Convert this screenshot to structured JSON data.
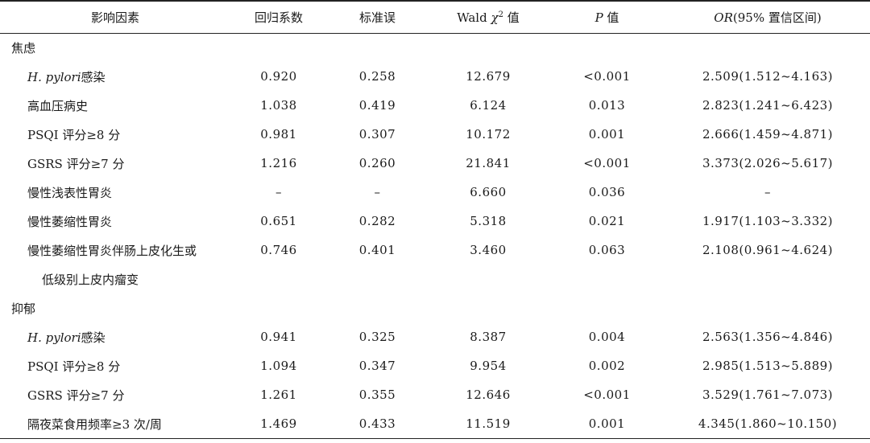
{
  "headers": {
    "factor": "影响因素",
    "coef": "回归系数",
    "se": "标准误",
    "wald_prefix": "Wald ",
    "wald_chi": "χ",
    "wald_sup": "2",
    "wald_suffix": " 值",
    "p_italic": "P",
    "p_suffix": " 值",
    "or_italic": "OR",
    "or_suffix": "(95% 置信区间)"
  },
  "groups": [
    {
      "label": "焦虑",
      "rows": [
        {
          "factor_italic": "H. pylori",
          "factor": "感染",
          "coef": "0.920",
          "se": "0.258",
          "wald": "12.679",
          "p": "<0.001",
          "or": "2.509(1.512~4.163)"
        },
        {
          "factor_italic": "",
          "factor": "高血压病史",
          "coef": "1.038",
          "se": "0.419",
          "wald": "6.124",
          "p": "0.013",
          "or": "2.823(1.241~6.423)"
        },
        {
          "factor_italic": "",
          "factor": "PSQI 评分≥8 分",
          "coef": "0.981",
          "se": "0.307",
          "wald": "10.172",
          "p": "0.001",
          "or": "2.666(1.459~4.871)"
        },
        {
          "factor_italic": "",
          "factor": "GSRS 评分≥7 分",
          "coef": "1.216",
          "se": "0.260",
          "wald": "21.841",
          "p": "<0.001",
          "or": "3.373(2.026~5.617)"
        },
        {
          "factor_italic": "",
          "factor": "慢性浅表性胃炎",
          "coef": "–",
          "se": "–",
          "wald": "6.660",
          "p": "0.036",
          "or": "–"
        },
        {
          "factor_italic": "",
          "factor": "慢性萎缩性胃炎",
          "coef": "0.651",
          "se": "0.282",
          "wald": "5.318",
          "p": "0.021",
          "or": "1.917(1.103~3.332)"
        },
        {
          "factor_italic": "",
          "factor": "慢性萎缩性胃炎伴肠上皮化生或",
          "coef": "0.746",
          "se": "0.401",
          "wald": "3.460",
          "p": "0.063",
          "or": "2.108(0.961~4.624)",
          "cont": "低级别上皮内瘤变"
        }
      ]
    },
    {
      "label": "抑郁",
      "rows": [
        {
          "factor_italic": "H. pylori",
          "factor": "感染",
          "coef": "0.941",
          "se": "0.325",
          "wald": "8.387",
          "p": "0.004",
          "or": "2.563(1.356~4.846)"
        },
        {
          "factor_italic": "",
          "factor": "PSQI 评分≥8 分",
          "coef": "1.094",
          "se": "0.347",
          "wald": "9.954",
          "p": "0.002",
          "or": "2.985(1.513~5.889)"
        },
        {
          "factor_italic": "",
          "factor": "GSRS 评分≥7 分",
          "coef": "1.261",
          "se": "0.355",
          "wald": "12.646",
          "p": "<0.001",
          "or": "3.529(1.761~7.073)"
        },
        {
          "factor_italic": "",
          "factor": "隔夜菜食用频率≥3 次/周",
          "coef": "1.469",
          "se": "0.433",
          "wald": "11.519",
          "p": "0.001",
          "or": "4.345(1.860~10.150)"
        }
      ]
    }
  ]
}
